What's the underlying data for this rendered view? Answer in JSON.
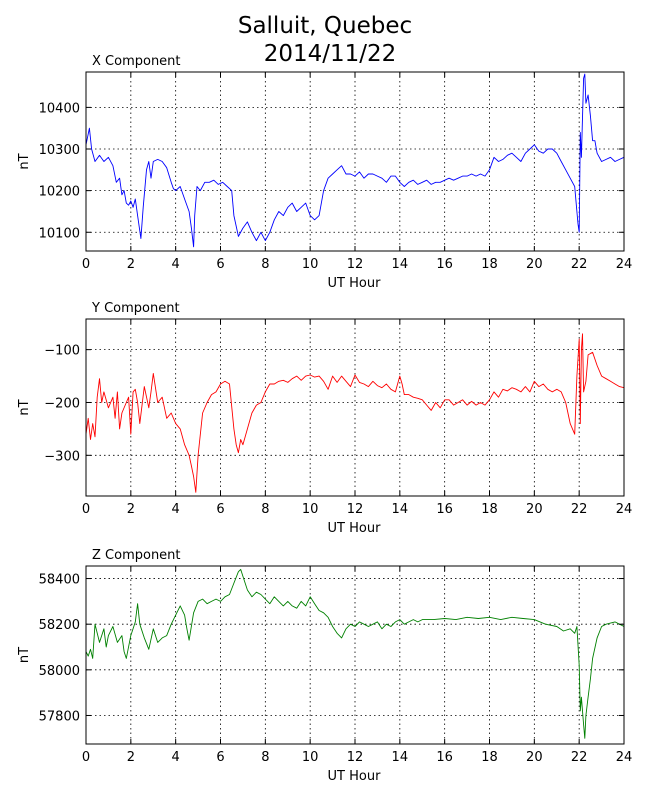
{
  "figure": {
    "title_line1": "Salluit, Quebec",
    "title_line2": "2014/11/22"
  },
  "chart_data": [
    {
      "type": "line",
      "title": "X Component",
      "xlabel": "UT Hour",
      "ylabel": "nT",
      "color": "#0000ff",
      "xlim": [
        0,
        24
      ],
      "ylim": [
        10055,
        10485
      ],
      "xticks": [
        0,
        2,
        4,
        6,
        8,
        10,
        12,
        14,
        16,
        18,
        20,
        22,
        24
      ],
      "yticks": [
        10100,
        10200,
        10300,
        10400
      ],
      "grid": true,
      "series": [
        {
          "x": [
            0,
            0.15,
            0.25,
            0.4,
            0.6,
            0.8,
            1.0,
            1.2,
            1.35,
            1.5,
            1.6,
            1.7,
            1.8,
            1.9,
            2.0,
            2.1,
            2.2,
            2.3,
            2.45,
            2.55,
            2.7,
            2.8,
            2.9,
            3.0,
            3.2,
            3.4,
            3.6,
            3.8,
            3.9,
            4.0,
            4.2,
            4.4,
            4.6,
            4.7,
            4.8,
            4.85,
            4.95,
            5.1,
            5.3,
            5.5,
            5.7,
            5.9,
            6.1,
            6.3,
            6.5,
            6.6,
            6.8,
            7.0,
            7.2,
            7.4,
            7.6,
            7.8,
            8.0,
            8.2,
            8.4,
            8.6,
            8.8,
            9.0,
            9.2,
            9.4,
            9.6,
            9.8,
            10.0,
            10.2,
            10.4,
            10.6,
            10.8,
            11.0,
            11.2,
            11.4,
            11.6,
            11.8,
            12.0,
            12.2,
            12.4,
            12.6,
            12.8,
            13.0,
            13.2,
            13.4,
            13.6,
            13.8,
            14.0,
            14.2,
            14.4,
            14.6,
            14.8,
            15.0,
            15.2,
            15.4,
            15.6,
            15.8,
            16.0,
            16.2,
            16.4,
            16.6,
            16.8,
            17.0,
            17.2,
            17.4,
            17.6,
            17.8,
            18.0,
            18.2,
            18.4,
            18.6,
            18.8,
            19.0,
            19.2,
            19.4,
            19.6,
            19.8,
            20.0,
            20.2,
            20.4,
            20.6,
            20.8,
            21.0,
            21.2,
            21.4,
            21.6,
            21.8,
            21.9,
            21.95,
            22.0,
            22.05,
            22.1,
            22.2,
            22.25,
            22.3,
            22.4,
            22.5,
            22.6,
            22.7,
            22.8,
            23.0,
            23.2,
            23.4,
            23.6,
            23.8,
            24.0
          ],
          "y": [
            10310,
            10350,
            10300,
            10270,
            10285,
            10270,
            10280,
            10260,
            10220,
            10230,
            10190,
            10200,
            10170,
            10165,
            10175,
            10160,
            10180,
            10140,
            10085,
            10160,
            10250,
            10270,
            10230,
            10270,
            10275,
            10270,
            10255,
            10220,
            10205,
            10200,
            10210,
            10180,
            10150,
            10110,
            10065,
            10140,
            10210,
            10200,
            10220,
            10220,
            10225,
            10215,
            10220,
            10210,
            10200,
            10140,
            10090,
            10110,
            10125,
            10100,
            10080,
            10100,
            10080,
            10100,
            10130,
            10150,
            10140,
            10160,
            10170,
            10150,
            10160,
            10170,
            10140,
            10130,
            10140,
            10200,
            10230,
            10240,
            10250,
            10260,
            10240,
            10240,
            10235,
            10245,
            10230,
            10240,
            10240,
            10235,
            10230,
            10220,
            10235,
            10235,
            10220,
            10210,
            10220,
            10225,
            10215,
            10220,
            10225,
            10215,
            10220,
            10220,
            10225,
            10230,
            10225,
            10230,
            10235,
            10235,
            10240,
            10235,
            10240,
            10235,
            10250,
            10280,
            10270,
            10275,
            10285,
            10290,
            10280,
            10270,
            10290,
            10300,
            10310,
            10295,
            10290,
            10300,
            10300,
            10290,
            10270,
            10250,
            10230,
            10210,
            10150,
            10120,
            10100,
            10340,
            10280,
            10470,
            10480,
            10410,
            10430,
            10380,
            10320,
            10320,
            10290,
            10270,
            10275,
            10280,
            10270,
            10275,
            10280
          ]
        }
      ]
    },
    {
      "type": "line",
      "title": "Y Component",
      "xlabel": "UT Hour",
      "ylabel": "nT",
      "color": "#ff0000",
      "xlim": [
        0,
        24
      ],
      "ylim": [
        -377,
        -42
      ],
      "xticks": [
        0,
        2,
        4,
        6,
        8,
        10,
        12,
        14,
        16,
        18,
        20,
        22,
        24
      ],
      "yticks": [
        -300,
        -200,
        -100
      ],
      "grid": true,
      "series": [
        {
          "x": [
            0,
            0.1,
            0.2,
            0.3,
            0.4,
            0.5,
            0.6,
            0.7,
            0.8,
            1.0,
            1.2,
            1.3,
            1.4,
            1.5,
            1.6,
            1.8,
            1.9,
            2.0,
            2.1,
            2.2,
            2.3,
            2.4,
            2.6,
            2.8,
            2.9,
            3.0,
            3.2,
            3.4,
            3.6,
            3.8,
            4.0,
            4.2,
            4.4,
            4.6,
            4.7,
            4.8,
            4.9,
            5.0,
            5.2,
            5.4,
            5.6,
            5.8,
            6.0,
            6.2,
            6.4,
            6.6,
            6.7,
            6.8,
            6.9,
            7.0,
            7.2,
            7.4,
            7.6,
            7.8,
            8.0,
            8.2,
            8.4,
            8.6,
            8.8,
            9.0,
            9.2,
            9.4,
            9.6,
            9.8,
            10.0,
            10.2,
            10.4,
            10.6,
            10.8,
            11.0,
            11.2,
            11.4,
            11.6,
            11.8,
            12.0,
            12.2,
            12.4,
            12.6,
            12.8,
            13.0,
            13.2,
            13.4,
            13.6,
            13.8,
            14.0,
            14.1,
            14.2,
            14.4,
            14.6,
            14.8,
            15.0,
            15.2,
            15.4,
            15.6,
            15.8,
            16.0,
            16.2,
            16.4,
            16.6,
            16.8,
            17.0,
            17.2,
            17.4,
            17.6,
            17.8,
            18.0,
            18.2,
            18.4,
            18.6,
            18.8,
            19.0,
            19.2,
            19.4,
            19.6,
            19.8,
            20.0,
            20.2,
            20.4,
            20.6,
            20.8,
            21.0,
            21.2,
            21.4,
            21.6,
            21.8,
            21.9,
            22.0,
            22.05,
            22.1,
            22.15,
            22.2,
            22.3,
            22.4,
            22.6,
            22.8,
            23.0,
            23.2,
            23.4,
            23.6,
            23.8,
            24.0
          ],
          "y": [
            -260,
            -230,
            -270,
            -240,
            -265,
            -190,
            -155,
            -200,
            -180,
            -210,
            -190,
            -230,
            -180,
            -250,
            -220,
            -200,
            -190,
            -260,
            -180,
            -175,
            -200,
            -240,
            -170,
            -210,
            -180,
            -145,
            -200,
            -190,
            -230,
            -220,
            -240,
            -250,
            -280,
            -300,
            -320,
            -340,
            -370,
            -300,
            -220,
            -200,
            -185,
            -180,
            -165,
            -160,
            -165,
            -250,
            -280,
            -295,
            -270,
            -280,
            -250,
            -220,
            -205,
            -200,
            -180,
            -165,
            -165,
            -160,
            -158,
            -162,
            -155,
            -150,
            -158,
            -150,
            -148,
            -152,
            -150,
            -160,
            -175,
            -150,
            -162,
            -150,
            -160,
            -170,
            -148,
            -162,
            -165,
            -170,
            -160,
            -168,
            -172,
            -165,
            -175,
            -180,
            -150,
            -165,
            -185,
            -185,
            -190,
            -192,
            -195,
            -205,
            -215,
            -200,
            -210,
            -195,
            -195,
            -205,
            -200,
            -195,
            -205,
            -198,
            -205,
            -200,
            -205,
            -195,
            -180,
            -190,
            -175,
            -178,
            -172,
            -175,
            -180,
            -170,
            -180,
            -160,
            -170,
            -165,
            -175,
            -180,
            -175,
            -180,
            -200,
            -240,
            -260,
            -150,
            -80,
            -240,
            -100,
            -70,
            -180,
            -160,
            -110,
            -105,
            -130,
            -150,
            -155,
            -160,
            -165,
            -170,
            -172
          ]
        }
      ]
    },
    {
      "type": "line",
      "title": "Z Component",
      "xlabel": "UT Hour",
      "ylabel": "nT",
      "color": "#008000",
      "xlim": [
        0,
        24
      ],
      "ylim": [
        57675,
        58455
      ],
      "xticks": [
        0,
        2,
        4,
        6,
        8,
        10,
        12,
        14,
        16,
        18,
        20,
        22,
        24
      ],
      "yticks": [
        57800,
        58000,
        58200,
        58400
      ],
      "grid": true,
      "series": [
        {
          "x": [
            0,
            0.1,
            0.2,
            0.3,
            0.4,
            0.6,
            0.8,
            0.9,
            1.0,
            1.2,
            1.4,
            1.6,
            1.7,
            1.8,
            2.0,
            2.2,
            2.3,
            2.4,
            2.6,
            2.8,
            3.0,
            3.2,
            3.4,
            3.6,
            3.8,
            4.0,
            4.2,
            4.4,
            4.5,
            4.6,
            4.8,
            5.0,
            5.2,
            5.4,
            5.6,
            5.8,
            6.0,
            6.2,
            6.4,
            6.6,
            6.8,
            6.9,
            7.0,
            7.2,
            7.4,
            7.6,
            7.8,
            8.0,
            8.2,
            8.4,
            8.6,
            8.8,
            9.0,
            9.2,
            9.4,
            9.6,
            9.8,
            10.0,
            10.2,
            10.4,
            10.6,
            10.8,
            11.0,
            11.2,
            11.4,
            11.6,
            11.8,
            12.0,
            12.2,
            12.4,
            12.6,
            12.8,
            13.0,
            13.2,
            13.4,
            13.6,
            13.8,
            14.0,
            14.2,
            14.4,
            14.6,
            14.8,
            15.0,
            15.5,
            16.0,
            16.5,
            17.0,
            17.5,
            18.0,
            18.5,
            19.0,
            19.5,
            20.0,
            20.5,
            21.0,
            21.3,
            21.6,
            21.8,
            21.9,
            22.0,
            22.05,
            22.1,
            22.2,
            22.25,
            22.3,
            22.4,
            22.5,
            22.6,
            22.8,
            23.0,
            23.2,
            23.4,
            23.6,
            23.8,
            24.0
          ],
          "y": [
            58080,
            58060,
            58090,
            58050,
            58200,
            58120,
            58180,
            58100,
            58150,
            58190,
            58120,
            58150,
            58080,
            58050,
            58150,
            58210,
            58290,
            58200,
            58140,
            58090,
            58180,
            58120,
            58140,
            58150,
            58200,
            58240,
            58280,
            58240,
            58180,
            58130,
            58250,
            58300,
            58310,
            58290,
            58300,
            58310,
            58300,
            58320,
            58330,
            58380,
            58430,
            58440,
            58410,
            58350,
            58320,
            58340,
            58330,
            58310,
            58290,
            58320,
            58300,
            58280,
            58300,
            58280,
            58270,
            58300,
            58280,
            58320,
            58290,
            58260,
            58250,
            58230,
            58190,
            58160,
            58140,
            58180,
            58200,
            58190,
            58210,
            58200,
            58190,
            58200,
            58210,
            58180,
            58200,
            58190,
            58210,
            58220,
            58200,
            58210,
            58220,
            58210,
            58220,
            58220,
            58225,
            58220,
            58230,
            58225,
            58230,
            58220,
            58230,
            58225,
            58220,
            58200,
            58190,
            58170,
            58180,
            58160,
            58190,
            58020,
            57820,
            57880,
            57760,
            57700,
            57800,
            57880,
            57960,
            58050,
            58140,
            58190,
            58200,
            58205,
            58210,
            58200,
            58190
          ]
        }
      ]
    }
  ]
}
